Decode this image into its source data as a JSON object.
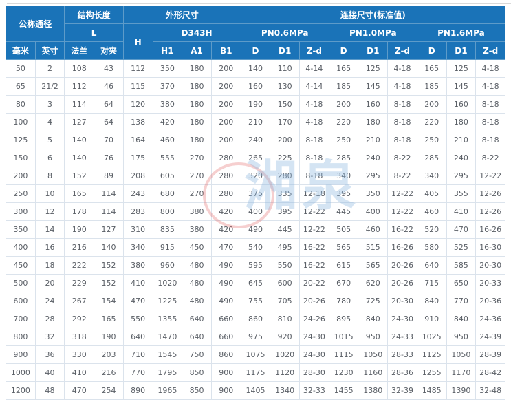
{
  "table": {
    "header": {
      "group_nominal": "公称通径",
      "group_structure_length": "结构长度",
      "group_overall": "外形尺寸",
      "group_connection": "连接尺寸(标准值)",
      "sub_L": "L",
      "sub_H": "H",
      "sub_model": "D343H",
      "pn06": "PN0.6MPa",
      "pn10": "PN1.0MPa",
      "pn16": "PN1.6MPa",
      "col_mm": "毫米",
      "col_inch": "英寸",
      "col_flange": "法兰",
      "col_wafer": "对夹",
      "col_h1": "H1",
      "col_a1": "A1",
      "col_b1": "B1",
      "col_d": "D",
      "col_d1": "D1",
      "col_zd": "Z-d"
    },
    "rows": [
      [
        "50",
        "2",
        "108",
        "43",
        "112",
        "350",
        "180",
        "200",
        "140",
        "110",
        "4-14",
        "165",
        "125",
        "4-18",
        "165",
        "125",
        "4-18"
      ],
      [
        "65",
        "21/2",
        "112",
        "46",
        "115",
        "370",
        "180",
        "200",
        "160",
        "130",
        "4-14",
        "185",
        "145",
        "4-18",
        "185",
        "145",
        "4-18"
      ],
      [
        "80",
        "3",
        "114",
        "64",
        "120",
        "380",
        "180",
        "200",
        "190",
        "150",
        "4-18",
        "200",
        "160",
        "8-18",
        "200",
        "160",
        "8-18"
      ],
      [
        "100",
        "4",
        "127",
        "64",
        "138",
        "420",
        "180",
        "200",
        "210",
        "170",
        "4-18",
        "220",
        "180",
        "8-18",
        "220",
        "180",
        "8-18"
      ],
      [
        "125",
        "5",
        "140",
        "70",
        "164",
        "460",
        "180",
        "200",
        "240",
        "200",
        "8-18",
        "250",
        "210",
        "8-18",
        "250",
        "210",
        "8-18"
      ],
      [
        "150",
        "6",
        "140",
        "76",
        "175",
        "555",
        "270",
        "280",
        "265",
        "225",
        "8-18",
        "285",
        "240",
        "8-22",
        "285",
        "240",
        "8-22"
      ],
      [
        "200",
        "8",
        "152",
        "89",
        "208",
        "605",
        "270",
        "280",
        "320",
        "280",
        "8-18",
        "340",
        "295",
        "8-22",
        "340",
        "295",
        "12-22"
      ],
      [
        "250",
        "10",
        "165",
        "114",
        "243",
        "680",
        "270",
        "280",
        "375",
        "335",
        "12-18",
        "395",
        "350",
        "12-22",
        "405",
        "355",
        "12-26"
      ],
      [
        "300",
        "12",
        "178",
        "114",
        "283",
        "800",
        "380",
        "420",
        "400",
        "395",
        "12-22",
        "445",
        "400",
        "12-22",
        "460",
        "410",
        "12-26"
      ],
      [
        "350",
        "14",
        "190",
        "127",
        "310",
        "835",
        "380",
        "420",
        "490",
        "445",
        "12-22",
        "505",
        "460",
        "16-22",
        "520",
        "470",
        "16-26"
      ],
      [
        "400",
        "16",
        "216",
        "140",
        "340",
        "915",
        "450",
        "470",
        "540",
        "495",
        "16-22",
        "565",
        "515",
        "16-26",
        "580",
        "525",
        "16-30"
      ],
      [
        "450",
        "18",
        "222",
        "152",
        "380",
        "960",
        "480",
        "490",
        "595",
        "550",
        "16-22",
        "615",
        "565",
        "20-26",
        "640",
        "585",
        "20-30"
      ],
      [
        "500",
        "20",
        "229",
        "152",
        "410",
        "1020",
        "480",
        "490",
        "645",
        "600",
        "20-22",
        "670",
        "620",
        "20-26",
        "715",
        "650",
        "20-33"
      ],
      [
        "600",
        "24",
        "267",
        "154",
        "470",
        "1225",
        "480",
        "490",
        "755",
        "705",
        "20-26",
        "780",
        "725",
        "20-30",
        "840",
        "770",
        "20-36"
      ],
      [
        "700",
        "28",
        "292",
        "165",
        "550",
        "1355",
        "640",
        "660",
        "860",
        "810",
        "24-26",
        "895",
        "840",
        "24-30",
        "910",
        "840",
        "24-36"
      ],
      [
        "800",
        "32",
        "318",
        "190",
        "640",
        "1470",
        "640",
        "660",
        "975",
        "920",
        "24-30",
        "1015",
        "950",
        "24-33",
        "1025",
        "950",
        "24-39"
      ],
      [
        "900",
        "36",
        "330",
        "203",
        "710",
        "1545",
        "750",
        "860",
        "1075",
        "1020",
        "24-30",
        "1115",
        "1050",
        "28-33",
        "1125",
        "1050",
        "28-39"
      ],
      [
        "1000",
        "40",
        "410",
        "216",
        "770",
        "1795",
        "850",
        "900",
        "1175",
        "1120",
        "28-30",
        "1230",
        "1160",
        "28-36",
        "1255",
        "1170",
        "28-42"
      ],
      [
        "1200",
        "48",
        "470",
        "254",
        "890",
        "1965",
        "850",
        "900",
        "1405",
        "1340",
        "32-33",
        "1455",
        "1380",
        "32-39",
        "1485",
        "1390",
        "32-48"
      ]
    ]
  },
  "watermark": {
    "text": "湘泉",
    "text_color": "#8fb9e0",
    "stamp_color": "#e06060"
  },
  "colors": {
    "header_bg": "#1a73b8",
    "header_text": "#ffffff",
    "body_text": "#5a5f66",
    "grid_border": "#dbe3ec"
  }
}
